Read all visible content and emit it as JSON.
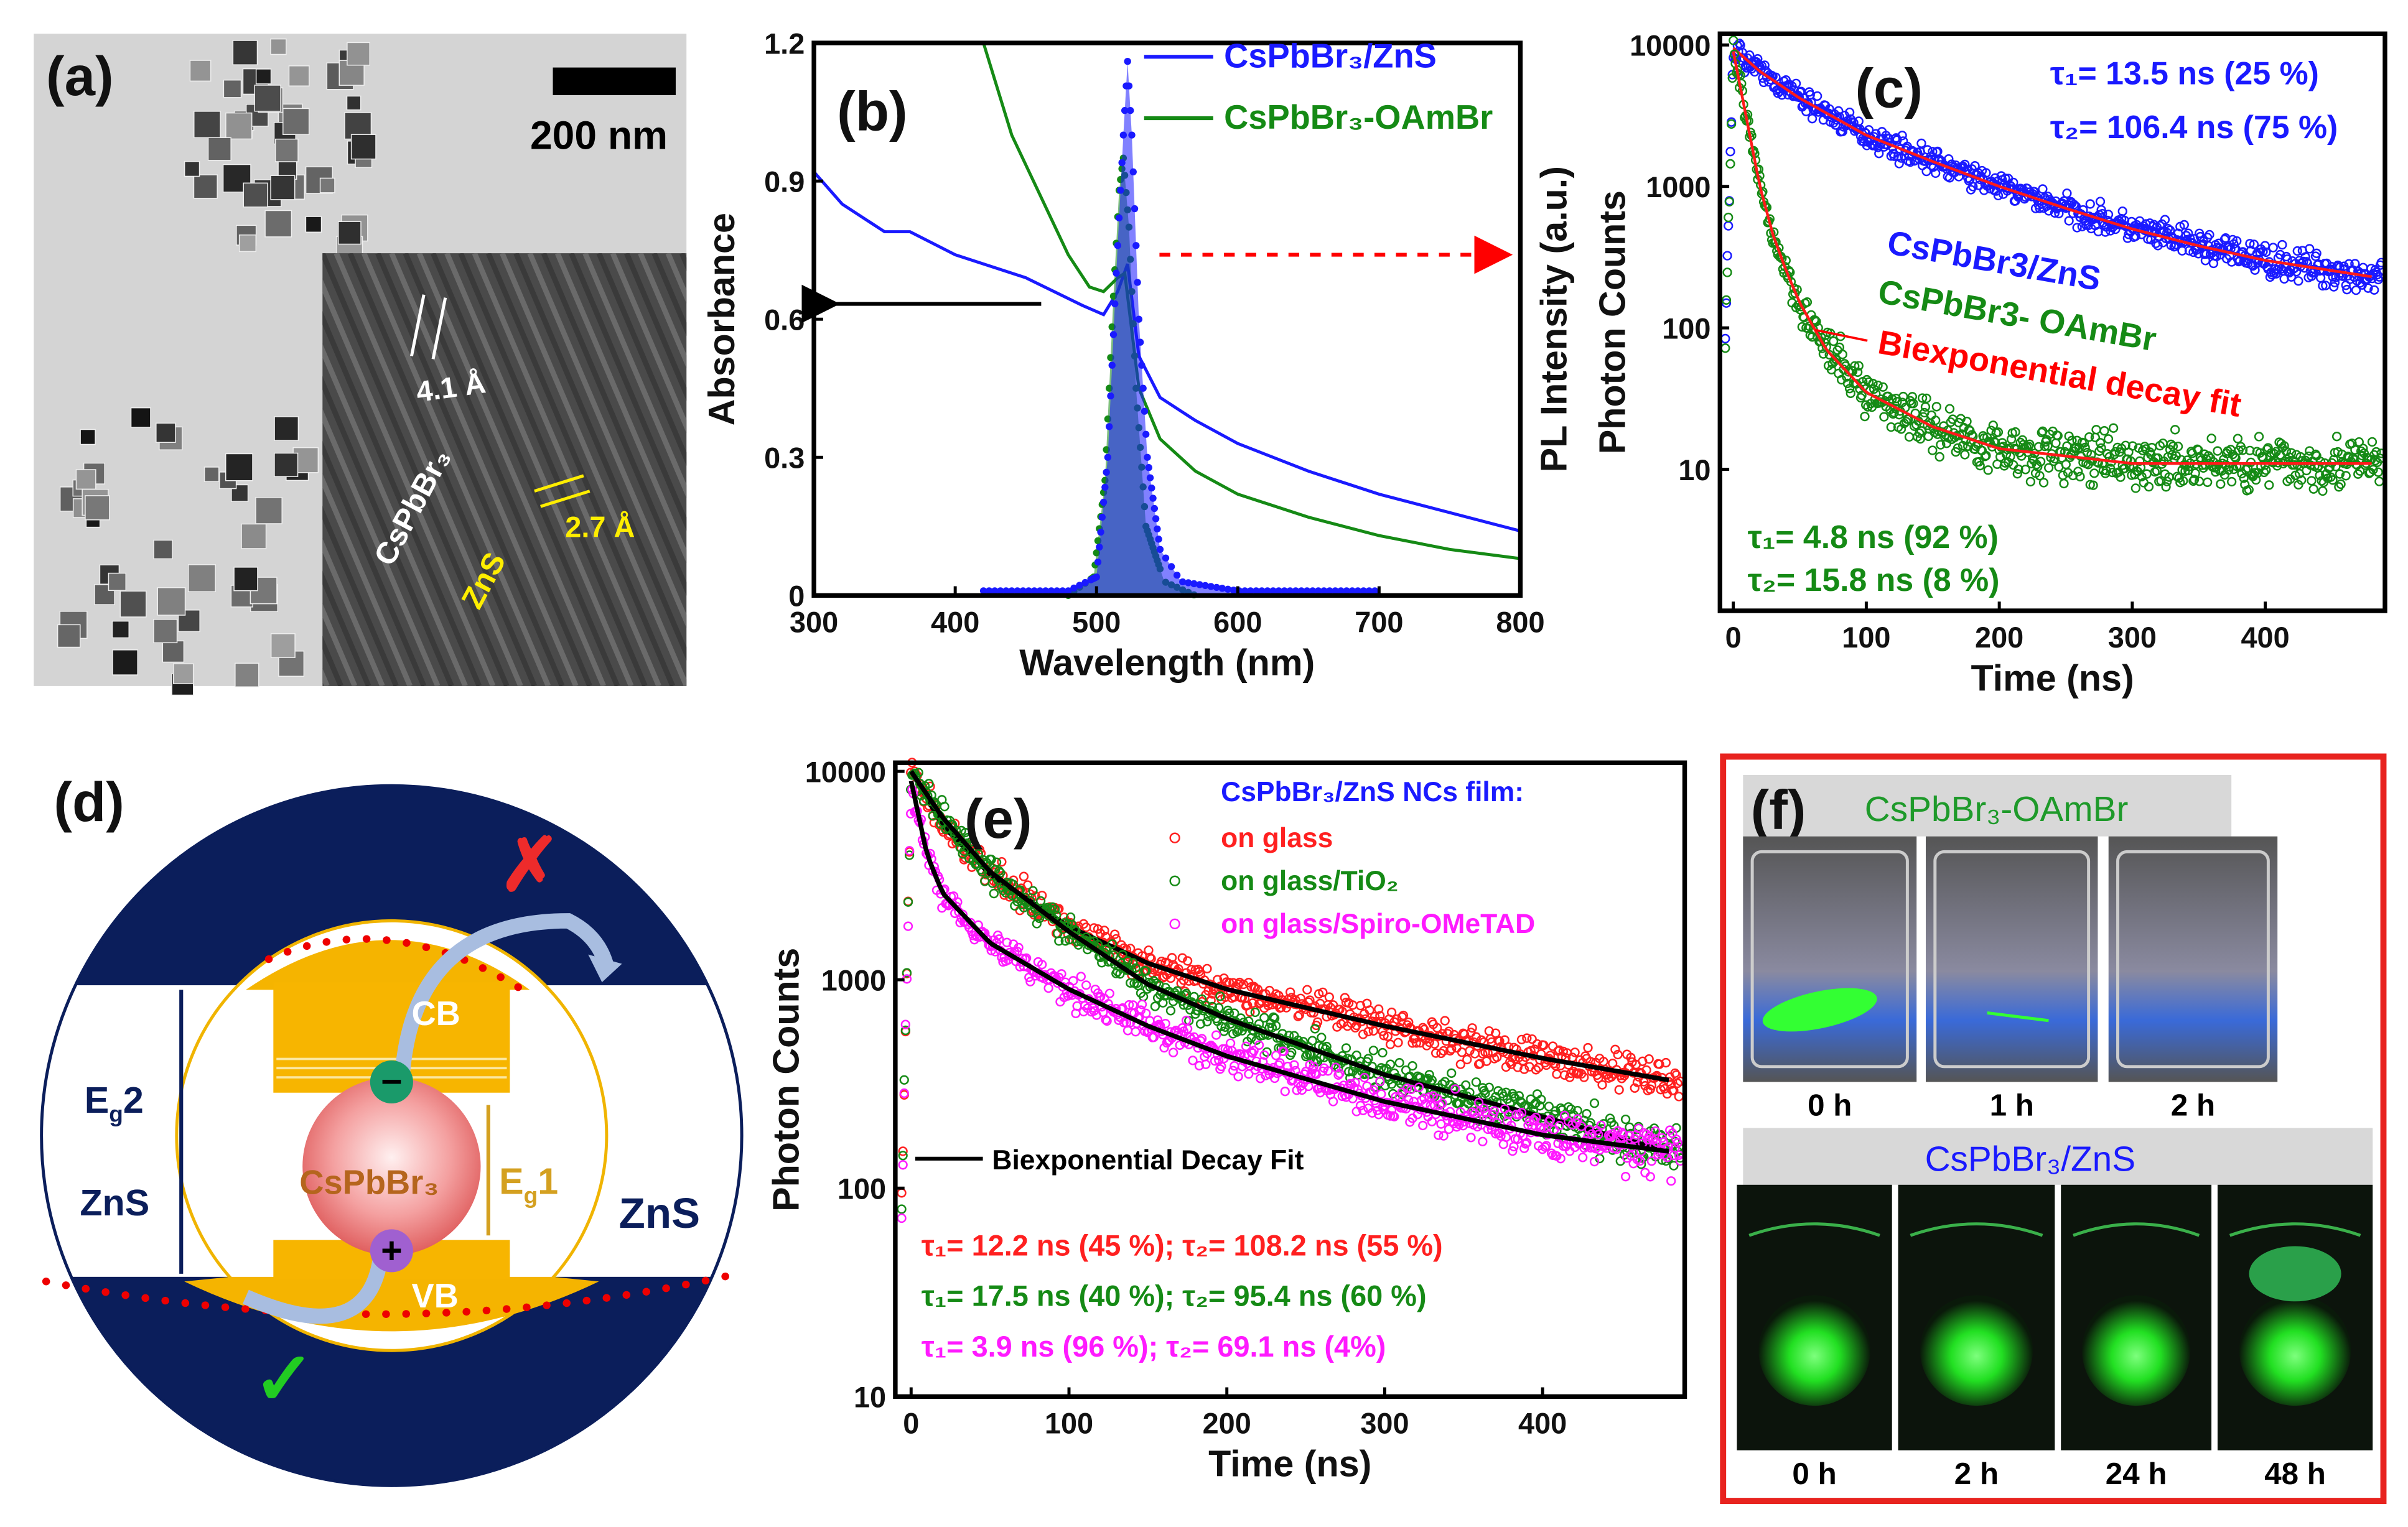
{
  "panel_a": {
    "label": "(a)",
    "scale_bar": "200 nm",
    "lattice_1": "4.1 Å",
    "lattice_2": "2.7 Å",
    "core_label": "CsPbBr₃",
    "shell_label": "ZnS"
  },
  "panel_d": {
    "label": "(d)",
    "cb": "CB",
    "vb": "VB",
    "core": "CsPbBr₃",
    "eg1_main": "E",
    "eg1_sub": "g",
    "eg1_suffix": "1",
    "eg2_main": "E",
    "eg2_sub": "g",
    "eg2_suffix": "2",
    "shell_inner": "ZnS",
    "shell_outer": "ZnS",
    "minus": "−",
    "plus": "+",
    "blocked": "✗",
    "allowed": "✓"
  },
  "panel_f": {
    "label": "(f)",
    "top_title": "CsPbBr₃-OAmBr",
    "top_times": [
      "0 h",
      "1 h",
      "2 h"
    ],
    "bottom_title": "CsPbBr₃/ZnS",
    "bottom_times": [
      "0 h",
      "2 h",
      "24 h",
      "48 h"
    ],
    "border_color": "#e8231f"
  },
  "chart_data": [
    {
      "id": "b",
      "type": "line",
      "title": "(b)",
      "xlabel": "Wavelength (nm)",
      "ylabel": "Absorbance",
      "y2label": "PL Intensity (a.u.)",
      "xlim": [
        300,
        800
      ],
      "ylim": [
        0,
        1.2
      ],
      "xticks": [
        300,
        400,
        500,
        600,
        700,
        800
      ],
      "yticks": [
        0,
        0.3,
        0.6,
        0.9,
        1.2
      ],
      "legend": [
        "CsPbBr₃/ZnS",
        "CsPbBr₃-OAmBr"
      ],
      "series": [
        {
          "name": "CsPbBr₃/ZnS absorbance",
          "color": "#1a1aff",
          "points": [
            [
              300,
              0.92
            ],
            [
              320,
              0.85
            ],
            [
              350,
              0.79
            ],
            [
              368,
              0.79
            ],
            [
              400,
              0.74
            ],
            [
              450,
              0.69
            ],
            [
              490,
              0.63
            ],
            [
              505,
              0.61
            ],
            [
              515,
              0.66
            ],
            [
              522,
              0.72
            ],
            [
              530,
              0.52
            ],
            [
              545,
              0.43
            ],
            [
              570,
              0.38
            ],
            [
              600,
              0.33
            ],
            [
              650,
              0.27
            ],
            [
              700,
              0.22
            ],
            [
              750,
              0.18
            ],
            [
              800,
              0.14
            ]
          ]
        },
        {
          "name": "CsPbBr₃-OAmBr absorbance",
          "color": "#158a15",
          "points": [
            [
              420,
              1.2
            ],
            [
              440,
              1.0
            ],
            [
              460,
              0.87
            ],
            [
              480,
              0.74
            ],
            [
              495,
              0.67
            ],
            [
              505,
              0.66
            ],
            [
              515,
              0.69
            ],
            [
              520,
              0.7
            ],
            [
              530,
              0.45
            ],
            [
              545,
              0.34
            ],
            [
              570,
              0.27
            ],
            [
              600,
              0.22
            ],
            [
              650,
              0.17
            ],
            [
              700,
              0.13
            ],
            [
              750,
              0.1
            ],
            [
              800,
              0.08
            ]
          ]
        },
        {
          "name": "CsPbBr₃-OAmBr PL",
          "color": "#158a15",
          "pl": true,
          "points": [
            [
              480,
              0
            ],
            [
              498,
              0.04
            ],
            [
              506,
              0.25
            ],
            [
              512,
              0.65
            ],
            [
              516,
              0.88
            ],
            [
              519,
              0.95
            ],
            [
              523,
              0.8
            ],
            [
              528,
              0.45
            ],
            [
              535,
              0.15
            ],
            [
              548,
              0.03
            ],
            [
              570,
              0
            ]
          ]
        },
        {
          "name": "CsPbBr₃/ZnS PL",
          "color": "#1a1aff",
          "pl": true,
          "points": [
            [
              420,
              0.01
            ],
            [
              480,
              0.01
            ],
            [
              500,
              0.04
            ],
            [
              508,
              0.3
            ],
            [
              514,
              0.7
            ],
            [
              519,
              1.0
            ],
            [
              522,
              1.16
            ],
            [
              525,
              1.0
            ],
            [
              530,
              0.6
            ],
            [
              536,
              0.3
            ],
            [
              545,
              0.1
            ],
            [
              560,
              0.03
            ],
            [
              600,
              0.01
            ],
            [
              700,
              0.01
            ]
          ]
        }
      ]
    },
    {
      "id": "c",
      "type": "scatter",
      "title": "(c)",
      "xlabel": "Time (ns)",
      "ylabel": "Photon Counts",
      "yscale": "log",
      "xlim": [
        -10,
        490
      ],
      "ylim": [
        1,
        12000
      ],
      "xticks": [
        0,
        100,
        200,
        300,
        400
      ],
      "yticks": [
        10,
        100,
        1000,
        10000
      ],
      "series": [
        {
          "name": "CsPbBr₃/ZnS",
          "label": "CsPbBr3/ZnS",
          "color": "#1a1aff",
          "fit_color": "#ff1a1a",
          "tau1": "τ₁=  13.5 ns (25 %)",
          "tau2": "τ₂= 106.4 ns (75 %)",
          "fit": [
            [
              0,
              9500
            ],
            [
              20,
              6500
            ],
            [
              50,
              4200
            ],
            [
              100,
              2300
            ],
            [
              150,
              1500
            ],
            [
              200,
              1000
            ],
            [
              250,
              700
            ],
            [
              300,
              500
            ],
            [
              350,
              380
            ],
            [
              400,
              300
            ],
            [
              480,
              230
            ]
          ]
        },
        {
          "name": "CsPbBr₃-OAmBr",
          "label": "CsPbBr3- OAmBr",
          "color": "#158a15",
          "fit_color": "#ff1a1a",
          "tau1": "τ₁=   4.8 ns (92 %)",
          "tau2": "τ₂= 15.8 ns (8 %)",
          "fit": [
            [
              0,
              9000
            ],
            [
              10,
              3000
            ],
            [
              20,
              1000
            ],
            [
              30,
              450
            ],
            [
              40,
              250
            ],
            [
              50,
              150
            ],
            [
              70,
              70
            ],
            [
              100,
              35
            ],
            [
              150,
              20
            ],
            [
              200,
              14
            ],
            [
              300,
              11
            ],
            [
              480,
              11
            ]
          ]
        }
      ],
      "fit_label": "Biexponential decay fit"
    },
    {
      "id": "e",
      "type": "scatter",
      "title": "(e)",
      "xlabel": "Time (ns)",
      "ylabel": "Photon Counts",
      "yscale": "log",
      "xlim": [
        -10,
        490
      ],
      "ylim": [
        10,
        11000
      ],
      "xticks": [
        0,
        100,
        200,
        300,
        400
      ],
      "yticks": [
        10,
        100,
        1000,
        10000
      ],
      "legend_title": "CsPbBr₃/ZnS NCs film:",
      "fit_label": "Biexponential Decay Fit",
      "series": [
        {
          "name": "on glass",
          "color": "#ff2020",
          "tau": "τ₁= 12.2 ns (45 %);  τ₂= 108.2 ns (55 %)",
          "fit": [
            [
              0,
              10000
            ],
            [
              20,
              5500
            ],
            [
              50,
              3200
            ],
            [
              100,
              1800
            ],
            [
              150,
              1200
            ],
            [
              200,
              900
            ],
            [
              300,
              600
            ],
            [
              400,
              420
            ],
            [
              480,
              330
            ]
          ]
        },
        {
          "name": "on glass/TiO₂",
          "color": "#158a15",
          "tau": "τ₁= 17.5 ns (40 %);  τ₂= 95.4 ns (60 %)",
          "fit": [
            [
              0,
              10000
            ],
            [
              20,
              6000
            ],
            [
              50,
              3300
            ],
            [
              100,
              1700
            ],
            [
              150,
              950
            ],
            [
              200,
              650
            ],
            [
              300,
              350
            ],
            [
              400,
              220
            ],
            [
              480,
              150
            ]
          ]
        },
        {
          "name": "on glass/Spiro-OMeTAD",
          "color": "#ff1aff",
          "tau": "τ₁= 3.9 ns (96 %);    τ₂= 69.1 ns (4%)",
          "fit": [
            [
              0,
              9000
            ],
            [
              10,
              4000
            ],
            [
              20,
              2600
            ],
            [
              50,
              1500
            ],
            [
              100,
              900
            ],
            [
              150,
              600
            ],
            [
              200,
              430
            ],
            [
              300,
              260
            ],
            [
              400,
              180
            ],
            [
              480,
              150
            ]
          ]
        }
      ]
    }
  ]
}
